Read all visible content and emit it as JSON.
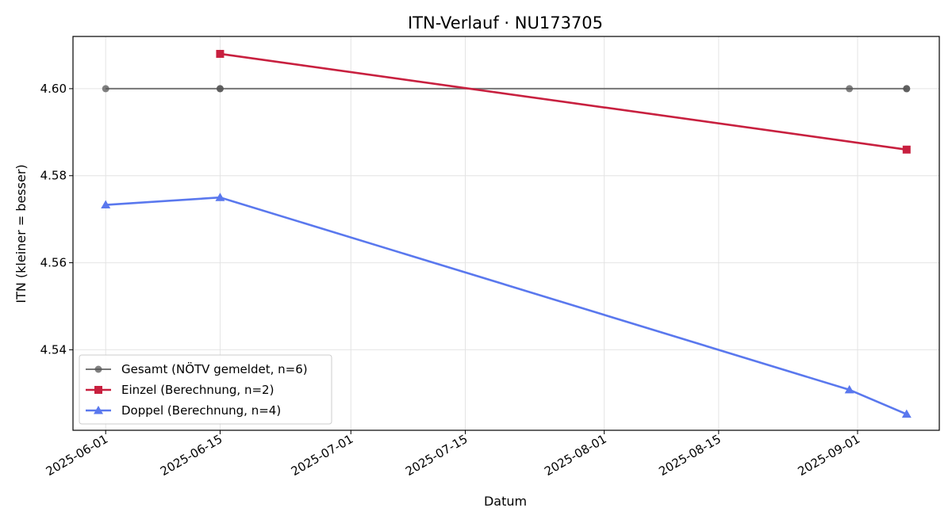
{
  "chart_data": {
    "type": "line",
    "title": "ITN-Verlauf · NU173705",
    "xlabel": "Datum",
    "ylabel": "ITN  (kleiner = besser)",
    "xlim": [
      "2025-05-28",
      "2025-09-11"
    ],
    "ylim": [
      4.5215,
      4.612
    ],
    "x_ticks": [
      "2025-06-01",
      "2025-06-15",
      "2025-07-01",
      "2025-07-15",
      "2025-08-01",
      "2025-08-15",
      "2025-09-01"
    ],
    "y_ticks": [
      4.54,
      4.56,
      4.58,
      4.6
    ],
    "y_tick_labels": [
      "4.54",
      "4.56",
      "4.58",
      "4.60"
    ],
    "grid": true,
    "legend_position": "lower-left",
    "series": [
      {
        "name": "Gesamt (NÖTV gemeldet, n=6)",
        "color": "#555555",
        "marker": "circle",
        "points": [
          {
            "x": "2025-06-01",
            "y": 4.6
          },
          {
            "x": "2025-06-15",
            "y": 4.6
          },
          {
            "x": "2025-06-15",
            "y": 4.6
          },
          {
            "x": "2025-08-31",
            "y": 4.6
          },
          {
            "x": "2025-09-07",
            "y": 4.6
          },
          {
            "x": "2025-09-07",
            "y": 4.6
          }
        ]
      },
      {
        "name": "Einzel (Berechnung, n=2)",
        "color": "#c8203f",
        "marker": "square",
        "points": [
          {
            "x": "2025-06-15",
            "y": 4.608
          },
          {
            "x": "2025-09-07",
            "y": 4.586
          }
        ]
      },
      {
        "name": "Doppel (Berechnung, n=4)",
        "color": "#5a78ee",
        "marker": "triangle",
        "points": [
          {
            "x": "2025-06-01",
            "y": 4.5733
          },
          {
            "x": "2025-06-15",
            "y": 4.575
          },
          {
            "x": "2025-08-31",
            "y": 4.5308
          },
          {
            "x": "2025-09-07",
            "y": 4.5252
          }
        ]
      }
    ]
  }
}
